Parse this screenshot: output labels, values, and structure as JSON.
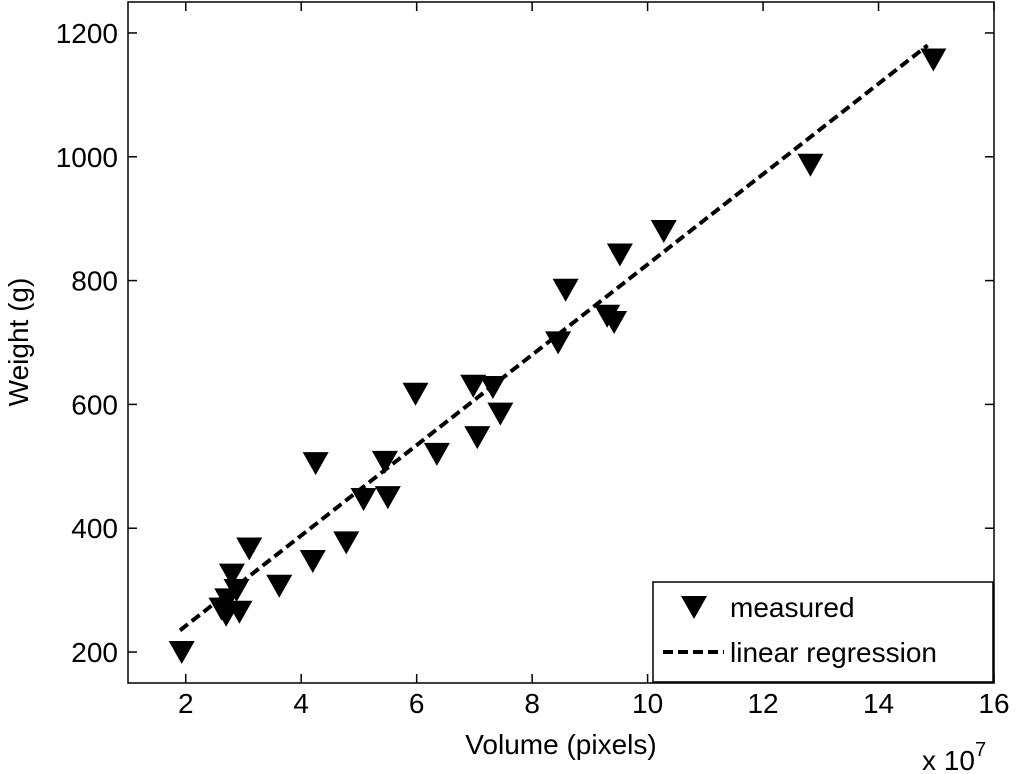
{
  "chart_data": {
    "type": "scatter",
    "title": "",
    "xlabel": "Volume (pixels)",
    "ylabel": "Weight (g)",
    "x_exponent_base": "x 10",
    "x_exponent_power": "7",
    "xlim": [
      1,
      16
    ],
    "ylim": [
      150,
      1250
    ],
    "xticks": [
      2,
      4,
      6,
      8,
      10,
      12,
      14,
      16
    ],
    "yticks": [
      200,
      400,
      600,
      800,
      1000,
      1200
    ],
    "grid": false,
    "legend_position": "bottom-right",
    "series": [
      {
        "name": "measured",
        "marker": "downward-triangle",
        "color": "#000000",
        "x": [
          1.93,
          2.62,
          2.7,
          2.72,
          2.8,
          2.88,
          2.93,
          3.1,
          3.62,
          4.2,
          4.25,
          4.78,
          5.08,
          5.45,
          5.5,
          5.98,
          6.35,
          6.98,
          7.05,
          7.32,
          7.45,
          8.45,
          8.58,
          9.3,
          9.42,
          9.52,
          10.28,
          12.82,
          14.95
        ],
        "y": [
          205,
          275,
          265,
          290,
          330,
          305,
          270,
          372,
          312,
          352,
          510,
          382,
          452,
          512,
          455,
          622,
          525,
          635,
          552,
          633,
          590,
          705,
          790,
          748,
          738,
          847,
          885,
          992,
          1162
        ]
      },
      {
        "name": "linear regression",
        "style": "dashed",
        "color": "#000000",
        "x": [
          1.9,
          14.85
        ],
        "y": [
          235,
          1180
        ]
      }
    ]
  }
}
